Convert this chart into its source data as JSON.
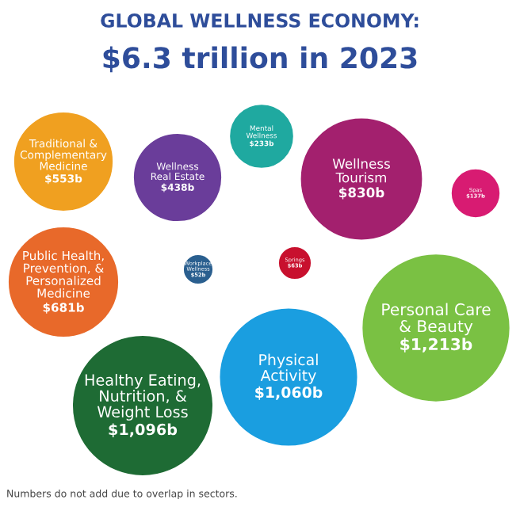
{
  "chart_data": {
    "type": "other",
    "title": "GLOBAL WELLNESS ECONOMY:",
    "subtitle": "$6.3 trillion in 2023",
    "categories": [
      "Traditional &\nComplementary\nMedicine",
      "Wellness\nReal Estate",
      "Mental\nWellness",
      "Wellness\nTourism",
      "Public Health,\nPrevention, &\nPersonalized\nMedicine",
      "Workplace\nWellness",
      "Springs",
      "Spas",
      "Personal Care\n& Beauty",
      "Healthy Eating,\nNutrition, &\nWeight Loss",
      "Physical\nActivity"
    ],
    "values": [
      553,
      438,
      233,
      830,
      681,
      52,
      63,
      137,
      1213,
      1096,
      1060
    ],
    "value_labels": [
      "$553b",
      "$438b",
      "$233b",
      "$830b",
      "$681b",
      "$52b",
      "$63b",
      "$137b",
      "$1,213b",
      "$1,096b",
      "$1,060b"
    ],
    "colors": [
      "#f0a020",
      "#6a3d9a",
      "#1fa9a0",
      "#a3206e",
      "#e8692a",
      "#2a5f8f",
      "#c8102e",
      "#d81b72",
      "#7ac143",
      "#1e6b34",
      "#1a9ee0"
    ],
    "annotations": [
      "Numbers do not add due to overlap in sectors."
    ]
  }
}
